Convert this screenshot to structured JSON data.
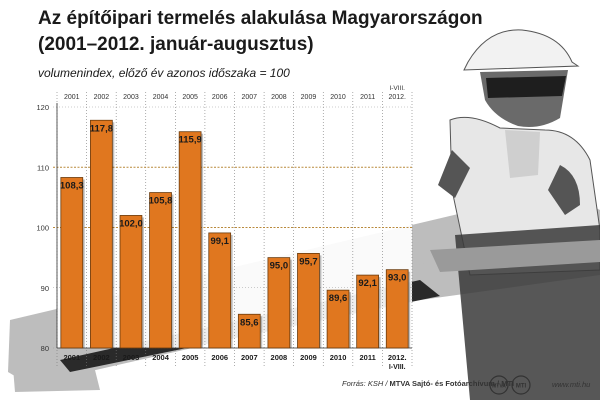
{
  "chart_data": {
    "type": "bar",
    "title_lines": [
      "Az építőipari termelés alakulása Magyarországon",
      "(2001–2012. január-augusztus)"
    ],
    "subtitle": "volumenindex, előző év azonos időszaka = 100",
    "categories": [
      "2001",
      "2002",
      "2003",
      "2004",
      "2005",
      "2006",
      "2007",
      "2008",
      "2009",
      "2010",
      "2011",
      "2012."
    ],
    "category_sublabels": [
      "",
      "",
      "",
      "",
      "",
      "",
      "",
      "",
      "",
      "",
      "",
      "I-VIII."
    ],
    "values": [
      108.3,
      117.8,
      102.0,
      105.8,
      115.9,
      99.1,
      85.6,
      95.0,
      95.7,
      89.6,
      92.1,
      93.0
    ],
    "value_labels": [
      "108,3",
      "117,8",
      "102,0",
      "105,8",
      "115,9",
      "99,1",
      "85,6",
      "95,0",
      "95,7",
      "89,6",
      "92,1",
      "93,0"
    ],
    "ylim": [
      80,
      120
    ],
    "yticks": [
      80,
      90,
      100,
      110,
      120
    ],
    "reference_lines": [
      100,
      110
    ],
    "grid": true,
    "bar_color": "#e0771f",
    "reference_line_color": "#b98a3c"
  },
  "footer": {
    "source_prefix": "Forrás: KSH / ",
    "source_bold": "MTVA Sajtó- és Fotóarchívum / MTI",
    "logo_1": "MTVA",
    "logo_2": "MTI",
    "website": "www.mti.hu"
  }
}
